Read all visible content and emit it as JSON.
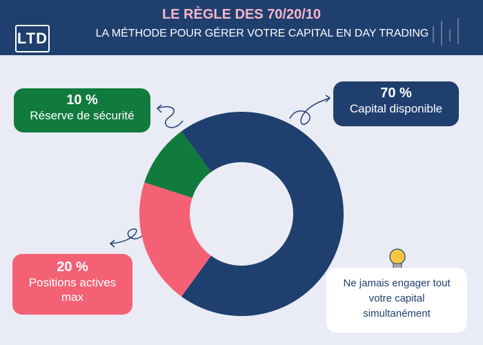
{
  "header": {
    "logo": "LTD"
  },
  "chart_data": {
    "type": "donut",
    "title": "LE RÈGLE DES 70/20/10",
    "subtitle": "LA MÉTHODE POUR GÉRER VOTRE CAPITAL EN DAY TRADING",
    "categories": [
      "Capital disponible",
      "Positions actives max",
      "Réserve de sécurité"
    ],
    "values": [
      70,
      20,
      10
    ],
    "value_labels": [
      "70 %",
      "20 %",
      "10 %"
    ],
    "colors": [
      "#1f3f6e",
      "#f46174",
      "#117a3d"
    ]
  },
  "note": "Ne jamais engager tout votre capital simultanément"
}
